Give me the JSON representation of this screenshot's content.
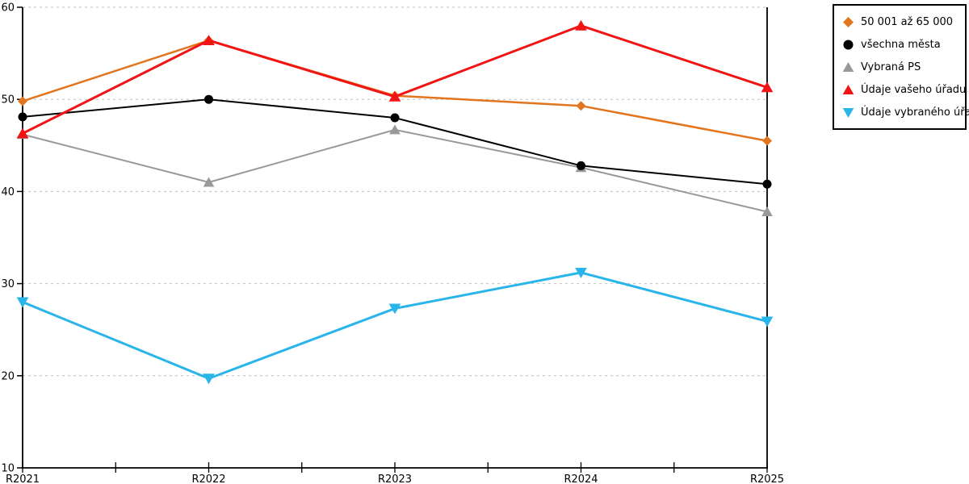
{
  "chart_data": {
    "type": "line",
    "categories": [
      "R2021",
      "R2022",
      "R2023",
      "R2024",
      "R2025"
    ],
    "series": [
      {
        "name": "50 001 až 65 000",
        "color": "#e2751d",
        "marker": "diamond",
        "line_width": 2.5,
        "marker_size": 6,
        "values": [
          49.8,
          56.4,
          50.4,
          49.3,
          45.5
        ]
      },
      {
        "name": "všechna města",
        "color": "#000000",
        "marker": "circle",
        "line_width": 2,
        "marker_size": 5.5,
        "values": [
          48.1,
          50.0,
          48.0,
          42.8,
          40.8
        ]
      },
      {
        "name": "Vybraná PS",
        "color": "#999999",
        "marker": "triangle-up",
        "line_width": 2,
        "marker_size": 6.5,
        "values": [
          46.2,
          41.0,
          46.7,
          42.6,
          37.8
        ]
      },
      {
        "name": "Údaje vašeho úřadu",
        "color": "#f11414",
        "marker": "triangle-up",
        "line_width": 3,
        "marker_size": 7,
        "values": [
          46.3,
          56.4,
          50.3,
          58.0,
          51.3
        ]
      },
      {
        "name": "Údaje vybraného úřadu",
        "color": "#29b5ea",
        "marker": "triangle-down",
        "line_width": 3,
        "marker_size": 7,
        "values": [
          28.0,
          19.7,
          27.3,
          31.2,
          25.9
        ]
      }
    ],
    "title": "",
    "xlabel": "",
    "ylabel": "",
    "ylim": [
      10,
      60
    ],
    "yticks": [
      10,
      20,
      30,
      40,
      50,
      60
    ],
    "grid": "dashed-horizontal",
    "grid_color": "#bfbfbf",
    "axis_color": "#000000",
    "tick_label_color": "#000000",
    "legend_position": "top-right",
    "draw_order": [
      0,
      2,
      1,
      3,
      4
    ]
  }
}
